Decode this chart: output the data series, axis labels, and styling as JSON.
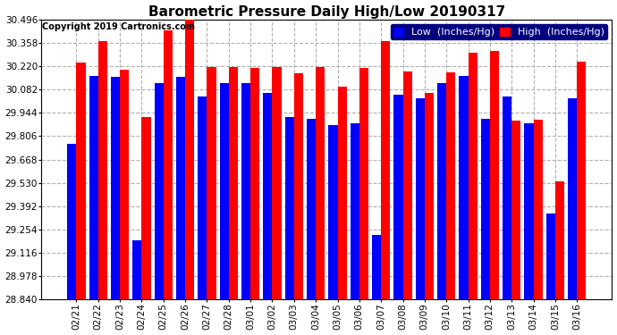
{
  "title": "Barometric Pressure Daily High/Low 20190317",
  "copyright": "Copyright 2019 Cartronics.com",
  "ylabel_low": "Low  (Inches/Hg)",
  "ylabel_high": "High  (Inches/Hg)",
  "ylim": [
    28.84,
    30.496
  ],
  "ymin": 28.84,
  "yticks": [
    28.84,
    28.978,
    29.116,
    29.254,
    29.392,
    29.53,
    29.668,
    29.806,
    29.944,
    30.082,
    30.22,
    30.358,
    30.496
  ],
  "categories": [
    "02/21",
    "02/22",
    "02/23",
    "02/24",
    "02/25",
    "02/26",
    "02/27",
    "02/28",
    "03/01",
    "03/02",
    "03/03",
    "03/04",
    "03/05",
    "03/06",
    "03/07",
    "03/08",
    "03/09",
    "03/10",
    "03/11",
    "03/12",
    "03/13",
    "03/14",
    "03/15",
    "03/16"
  ],
  "low_values": [
    29.76,
    30.16,
    30.155,
    29.19,
    30.12,
    30.155,
    30.04,
    30.12,
    30.12,
    30.06,
    29.92,
    29.91,
    29.87,
    29.88,
    29.22,
    30.05,
    30.03,
    30.12,
    30.16,
    29.91,
    30.04,
    29.88,
    29.35,
    30.03
  ],
  "high_values": [
    30.24,
    30.37,
    30.2,
    29.92,
    30.43,
    30.496,
    30.215,
    30.215,
    30.21,
    30.215,
    30.18,
    30.215,
    30.1,
    30.21,
    30.37,
    30.19,
    30.06,
    30.185,
    30.3,
    30.31,
    29.9,
    29.905,
    29.54,
    30.245
  ],
  "low_color": "#0000ff",
  "high_color": "#ff0000",
  "bg_color": "#ffffff",
  "grid_color": "#b0b0b0",
  "title_fontsize": 11,
  "tick_fontsize": 7.5,
  "legend_fontsize": 8,
  "copyright_fontsize": 7
}
